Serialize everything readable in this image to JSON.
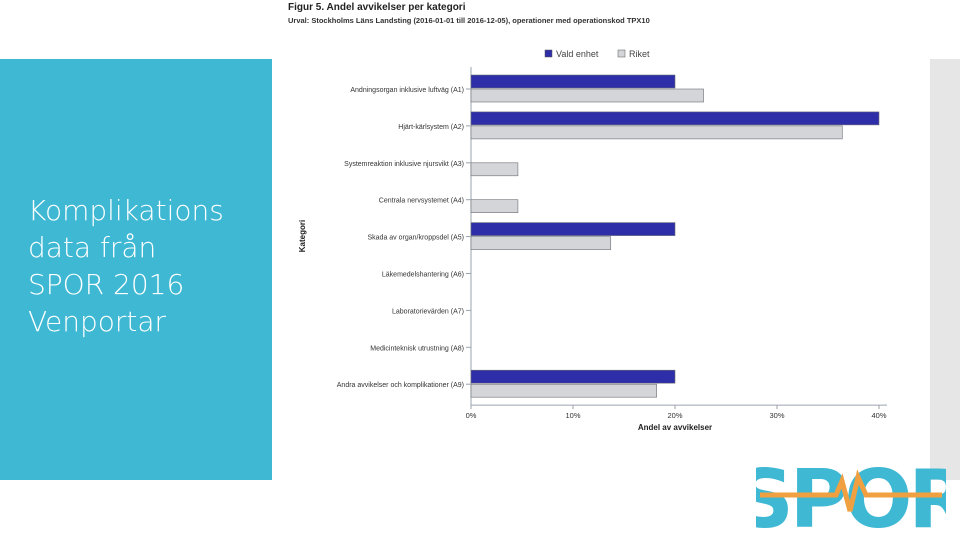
{
  "slide": {
    "title_lines": [
      "Komplikations",
      "data från",
      "SPOR 2016",
      "Venportar"
    ]
  },
  "figure": {
    "title": "Figur 5. Andel avvikelser per kategori",
    "subtitle": "Urval: Stockholms Läns Landsting (2016-01-01 till 2016-12-05), operationer med operationskod TPX10"
  },
  "logo": {
    "text": "SPOR",
    "colors": {
      "letters": "#3fb8d4",
      "line": "#f0a040"
    }
  },
  "chart_data": {
    "type": "bar",
    "orientation": "horizontal",
    "categories": [
      "Andningsorgan inklusive luftväg (A1)",
      "Hjärt-kärlsystem (A2)",
      "Systemreaktion inklusive njursvikt (A3)",
      "Centrala nervsystemet (A4)",
      "Skada av organ/kroppsdel (A5)",
      "Läkemedelshantering (A6)",
      "Laboratorievärden (A7)",
      "Medicinteknisk utrustning (A8)",
      "Andra avvikelser och komplikationer (A9)"
    ],
    "series": [
      {
        "name": "Vald enhet",
        "color": "#2e2ea8",
        "values": [
          20,
          40,
          0,
          0,
          20,
          0,
          0,
          0,
          20
        ]
      },
      {
        "name": "Riket",
        "color": "#d3d5d8",
        "values": [
          22.8,
          36.4,
          4.6,
          4.6,
          13.7,
          0,
          0,
          0,
          18.2
        ]
      }
    ],
    "xlabel": "Andel av avvikelser",
    "ylabel": "Kategori",
    "xlim": [
      0,
      40
    ],
    "xticks": [
      0,
      10,
      20,
      30,
      40
    ],
    "xtick_labels": [
      "0%",
      "10%",
      "20%",
      "30%",
      "40%"
    ],
    "legend": "top",
    "grid": false
  }
}
